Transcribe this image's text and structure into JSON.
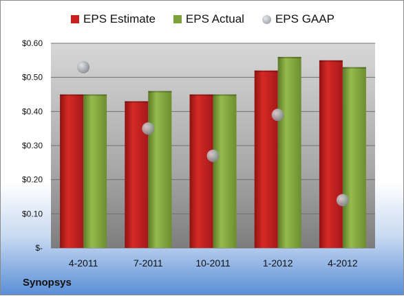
{
  "company": "Synopsys",
  "chart_data": {
    "type": "bar",
    "categories": [
      "4-2011",
      "7-2011",
      "10-2011",
      "1-2012",
      "4-2012"
    ],
    "series": [
      {
        "name": "EPS Estimate",
        "values": [
          0.45,
          0.43,
          0.45,
          0.52,
          0.55
        ],
        "color": "#c8201e"
      },
      {
        "name": "EPS Actual",
        "values": [
          0.45,
          0.46,
          0.45,
          0.56,
          0.53
        ],
        "color": "#7fa13a"
      }
    ],
    "scatter_series": {
      "name": "EPS GAAP",
      "values": [
        0.53,
        0.35,
        0.27,
        0.39,
        0.14
      ],
      "color": "#9da1a8"
    },
    "y_ticks": [
      {
        "value": 0.0,
        "label": "$-"
      },
      {
        "value": 0.1,
        "label": "$0.10"
      },
      {
        "value": 0.2,
        "label": "$0.20"
      },
      {
        "value": 0.3,
        "label": "$0.30"
      },
      {
        "value": 0.4,
        "label": "$0.40"
      },
      {
        "value": 0.5,
        "label": "$0.50"
      },
      {
        "value": 0.6,
        "label": "$0.60"
      }
    ],
    "ylim": [
      0,
      0.6
    ],
    "grid": true,
    "legend_position": "top"
  }
}
